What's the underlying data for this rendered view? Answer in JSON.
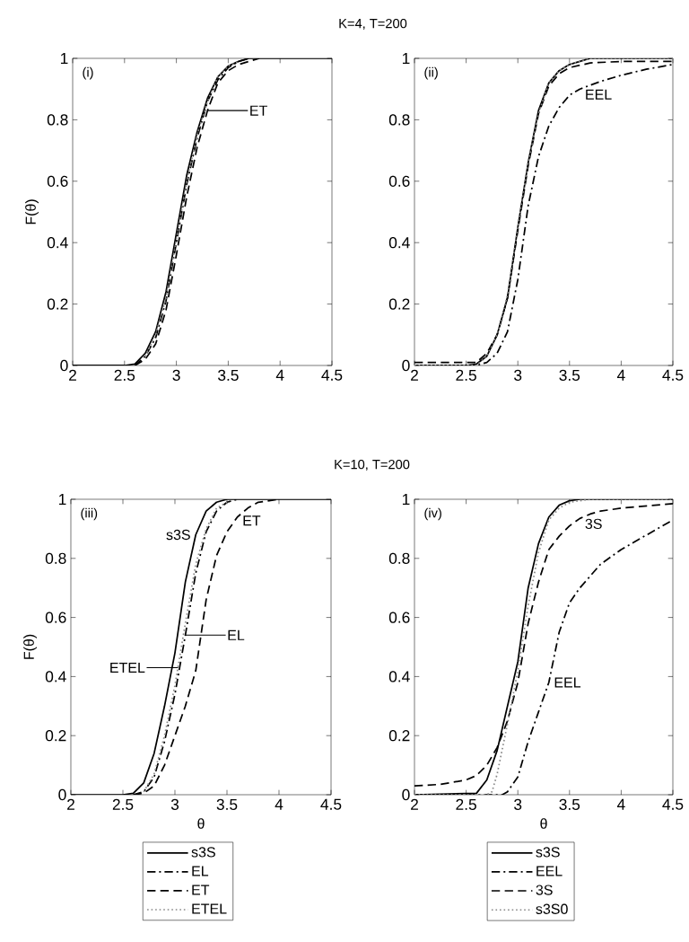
{
  "chart_data": [
    {
      "type": "line",
      "title": "K=4, T=200",
      "ylabel": "F(θ)",
      "annotations": [
        "(i)",
        {
          "text": "ET",
          "x": 3.3,
          "y": 0.83
        }
      ],
      "xlim": [
        2,
        4.5
      ],
      "ylim": [
        0,
        1
      ],
      "xticks": [
        2,
        2.5,
        3,
        3.5,
        4,
        4.5
      ],
      "yticks": [
        0,
        0.2,
        0.4,
        0.6,
        0.8,
        1
      ],
      "series": [
        {
          "color": "#000000",
          "line_style": "solid",
          "x": [
            2,
            2.5,
            2.6,
            2.7,
            2.8,
            2.9,
            3.0,
            3.1,
            3.2,
            3.3,
            3.4,
            3.5,
            3.6,
            3.7,
            4.5
          ],
          "values": [
            0,
            0,
            0.005,
            0.04,
            0.11,
            0.24,
            0.43,
            0.62,
            0.76,
            0.87,
            0.94,
            0.975,
            0.99,
            1,
            1
          ]
        },
        {
          "color": "#000000",
          "line_style": "dashdot",
          "x": [
            2.6,
            2.7,
            2.8,
            2.9,
            3.0,
            3.1,
            3.2,
            3.3,
            3.4,
            3.5,
            3.6,
            3.7
          ],
          "values": [
            0,
            0.03,
            0.09,
            0.21,
            0.4,
            0.59,
            0.74,
            0.86,
            0.93,
            0.97,
            0.99,
            1
          ]
        },
        {
          "color": "#000000",
          "line_style": "dashed",
          "x": [
            2.6,
            2.7,
            2.8,
            2.9,
            3.0,
            3.1,
            3.2,
            3.3,
            3.4,
            3.5,
            3.6,
            3.7,
            3.8
          ],
          "values": [
            0,
            0.02,
            0.07,
            0.18,
            0.36,
            0.55,
            0.71,
            0.83,
            0.92,
            0.96,
            0.98,
            0.99,
            1
          ]
        },
        {
          "color": "#888888",
          "line_style": "dotted",
          "x": [
            2.7,
            2.8,
            2.9,
            3.0,
            3.1,
            3.2,
            3.3,
            3.4,
            3.5,
            3.6
          ],
          "values": [
            0.03,
            0.1,
            0.22,
            0.41,
            0.6,
            0.75,
            0.86,
            0.94,
            0.975,
            0.99
          ]
        }
      ]
    },
    {
      "type": "line",
      "annotations": [
        "(ii)",
        {
          "text": "EEL",
          "x": 3.6,
          "y": 0.9
        }
      ],
      "xlim": [
        2,
        4.5
      ],
      "ylim": [
        0,
        1
      ],
      "xticks": [
        2,
        2.5,
        3,
        3.5,
        4,
        4.5
      ],
      "yticks": [
        0,
        0.2,
        0.4,
        0.6,
        0.8,
        1
      ],
      "series": [
        {
          "color": "#000000",
          "line_style": "solid",
          "x": [
            2,
            2.5,
            2.6,
            2.7,
            2.8,
            2.9,
            3.0,
            3.1,
            3.2,
            3.3,
            3.4,
            3.5,
            3.6,
            3.7,
            4.5
          ],
          "values": [
            0,
            0,
            0.005,
            0.03,
            0.1,
            0.22,
            0.45,
            0.66,
            0.83,
            0.92,
            0.96,
            0.98,
            0.99,
            1,
            1
          ]
        },
        {
          "color": "#000000",
          "line_style": "dashdot",
          "x": [
            2,
            2.6,
            2.7,
            2.8,
            2.9,
            3.0,
            3.1,
            3.2,
            3.3,
            3.4,
            3.5,
            3.6,
            3.8,
            4.0,
            4.25,
            4.5
          ],
          "values": [
            0,
            0,
            0.01,
            0.04,
            0.11,
            0.28,
            0.52,
            0.68,
            0.78,
            0.84,
            0.88,
            0.9,
            0.925,
            0.945,
            0.965,
            0.98
          ]
        },
        {
          "color": "#000000",
          "line_style": "dashed",
          "x": [
            2,
            2.5,
            2.6,
            2.7,
            2.8,
            2.9,
            3.0,
            3.1,
            3.2,
            3.3,
            3.4,
            3.5,
            3.7,
            4.0,
            4.5
          ],
          "values": [
            0.01,
            0.01,
            0.01,
            0.04,
            0.1,
            0.22,
            0.44,
            0.65,
            0.82,
            0.91,
            0.95,
            0.97,
            0.985,
            0.99,
            0.99
          ]
        },
        {
          "color": "#888888",
          "line_style": "dotted",
          "x": [
            2,
            2.6,
            2.7,
            2.8,
            2.9,
            3.0,
            3.1,
            3.2,
            3.3,
            3.4,
            3.5,
            3.6,
            3.7,
            4.5
          ],
          "values": [
            0,
            0,
            0.03,
            0.1,
            0.23,
            0.45,
            0.66,
            0.82,
            0.92,
            0.96,
            0.98,
            0.99,
            1,
            1
          ]
        }
      ]
    },
    {
      "type": "line",
      "title": "K=10, T=200",
      "xlabel": "θ",
      "ylabel": "F(θ)",
      "legend": "bottom",
      "annotations": [
        "(iii)",
        {
          "text": "s3S",
          "x": 3.2,
          "y": 0.88
        },
        {
          "text": "ET",
          "x": 3.6,
          "y": 0.94
        },
        {
          "text": "EL",
          "x": 3.1,
          "y": 0.54
        },
        {
          "text": "ETEL",
          "x": 3.03,
          "y": 0.43
        }
      ],
      "xlim": [
        2,
        4.5
      ],
      "ylim": [
        0,
        1
      ],
      "xticks": [
        2,
        2.5,
        3,
        3.5,
        4,
        4.5
      ],
      "yticks": [
        0,
        0.2,
        0.4,
        0.6,
        0.8,
        1
      ],
      "series": [
        {
          "name": "s3S",
          "color": "#000000",
          "line_style": "solid",
          "x": [
            2,
            2.5,
            2.6,
            2.7,
            2.8,
            2.9,
            3.0,
            3.1,
            3.2,
            3.3,
            3.4,
            3.5,
            4.5
          ],
          "values": [
            0,
            0,
            0.005,
            0.04,
            0.14,
            0.3,
            0.48,
            0.72,
            0.88,
            0.96,
            0.99,
            1,
            1
          ]
        },
        {
          "name": "EL",
          "color": "#000000",
          "line_style": "dashdot",
          "x": [
            2.6,
            2.7,
            2.8,
            2.9,
            3.0,
            3.1,
            3.2,
            3.3,
            3.4,
            3.5,
            3.6
          ],
          "values": [
            0,
            0.01,
            0.06,
            0.18,
            0.34,
            0.54,
            0.75,
            0.89,
            0.96,
            0.99,
            1
          ]
        },
        {
          "name": "ET",
          "color": "#000000",
          "line_style": "dashed",
          "x": [
            2.6,
            2.7,
            2.8,
            2.9,
            3.0,
            3.1,
            3.2,
            3.3,
            3.4,
            3.5,
            3.6,
            3.7,
            3.8,
            4.0
          ],
          "values": [
            0,
            0.005,
            0.03,
            0.1,
            0.2,
            0.3,
            0.42,
            0.66,
            0.81,
            0.89,
            0.94,
            0.97,
            0.99,
            1
          ]
        },
        {
          "name": "ETEL",
          "color": "#888888",
          "line_style": "dotted",
          "x": [
            2.7,
            2.8,
            2.9,
            3.0,
            3.1,
            3.2,
            3.3,
            3.4,
            3.5
          ],
          "values": [
            0.01,
            0.07,
            0.2,
            0.37,
            0.58,
            0.78,
            0.9,
            0.97,
            0.99
          ]
        }
      ]
    },
    {
      "type": "line",
      "xlabel": "θ",
      "legend": "bottom",
      "annotations": [
        "(iv)",
        {
          "text": "3S",
          "x": 3.6,
          "y": 0.935
        },
        {
          "text": "EEL",
          "x": 3.3,
          "y": 0.38
        }
      ],
      "xlim": [
        2,
        4.5
      ],
      "ylim": [
        0,
        1
      ],
      "xticks": [
        2,
        2.5,
        3,
        3.5,
        4,
        4.5
      ],
      "yticks": [
        0,
        0.2,
        0.4,
        0.6,
        0.8,
        1
      ],
      "series": [
        {
          "name": "s3S",
          "color": "#000000",
          "line_style": "solid",
          "x": [
            2,
            2.6,
            2.7,
            2.8,
            2.9,
            3.0,
            3.1,
            3.2,
            3.3,
            3.4,
            3.5,
            3.6,
            4.5
          ],
          "values": [
            0,
            0.005,
            0.05,
            0.15,
            0.3,
            0.45,
            0.7,
            0.85,
            0.94,
            0.98,
            0.995,
            1,
            1
          ]
        },
        {
          "name": "EEL",
          "color": "#000000",
          "line_style": "dashdot",
          "x": [
            2,
            2.85,
            2.9,
            3.0,
            3.1,
            3.2,
            3.3,
            3.4,
            3.5,
            3.6,
            3.7,
            3.8,
            4.0,
            4.2,
            4.35,
            4.5
          ],
          "values": [
            0,
            0,
            0.01,
            0.06,
            0.18,
            0.28,
            0.38,
            0.55,
            0.65,
            0.7,
            0.74,
            0.78,
            0.83,
            0.87,
            0.9,
            0.93
          ]
        },
        {
          "name": "3S",
          "color": "#000000",
          "line_style": "dashed",
          "x": [
            2,
            2.25,
            2.5,
            2.6,
            2.7,
            2.8,
            2.9,
            3.0,
            3.1,
            3.2,
            3.3,
            3.4,
            3.5,
            3.6,
            3.7,
            3.8,
            4.0,
            4.5
          ],
          "values": [
            0.03,
            0.035,
            0.05,
            0.065,
            0.1,
            0.16,
            0.25,
            0.38,
            0.58,
            0.72,
            0.83,
            0.875,
            0.91,
            0.935,
            0.95,
            0.96,
            0.97,
            0.985
          ]
        },
        {
          "name": "s3S0",
          "color": "#888888",
          "line_style": "dotted",
          "x": [
            2,
            2.7,
            2.75,
            2.8,
            2.9,
            3.0,
            3.1,
            3.2,
            3.3,
            3.4,
            3.5,
            3.7,
            4.5
          ],
          "values": [
            0,
            0,
            0.01,
            0.07,
            0.24,
            0.42,
            0.64,
            0.82,
            0.93,
            0.97,
            0.99,
            1,
            1
          ]
        }
      ]
    }
  ]
}
